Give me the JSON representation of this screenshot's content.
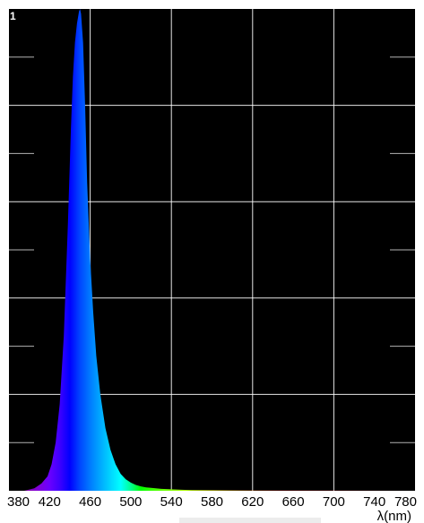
{
  "chart_data": {
    "type": "area",
    "title": "",
    "xlabel": "λ(nm)",
    "ylabel": "",
    "xlim": [
      380,
      780
    ],
    "ylim": [
      0,
      1
    ],
    "x_ticks": [
      380,
      420,
      460,
      500,
      540,
      580,
      620,
      660,
      700,
      740,
      780
    ],
    "y_tick_labels": [
      {
        "value": 1,
        "label": "1"
      }
    ],
    "grid": true,
    "legend": "none",
    "background_color": "#000000",
    "grid_color": "#ffffff",
    "series": [
      {
        "fill": "spectral-colors",
        "x": [
          380,
          395,
          405,
          412,
          418,
          422,
          426,
          430,
          434,
          438,
          441,
          443,
          445,
          447,
          449,
          450,
          451,
          453,
          455,
          457,
          460,
          463,
          466,
          470,
          475,
          480,
          485,
          490,
          495,
          500,
          505,
          510,
          515,
          520,
          530,
          540,
          550,
          560,
          580,
          620,
          700,
          780
        ],
        "y": [
          0.0,
          0.0,
          0.005,
          0.015,
          0.03,
          0.055,
          0.1,
          0.18,
          0.32,
          0.55,
          0.75,
          0.86,
          0.93,
          0.97,
          0.995,
          1.0,
          0.99,
          0.93,
          0.8,
          0.64,
          0.48,
          0.37,
          0.28,
          0.2,
          0.13,
          0.085,
          0.055,
          0.035,
          0.024,
          0.017,
          0.012,
          0.009,
          0.007,
          0.006,
          0.004,
          0.003,
          0.002,
          0.0015,
          0.001,
          0.0005,
          0.0002,
          0.0
        ]
      }
    ]
  }
}
